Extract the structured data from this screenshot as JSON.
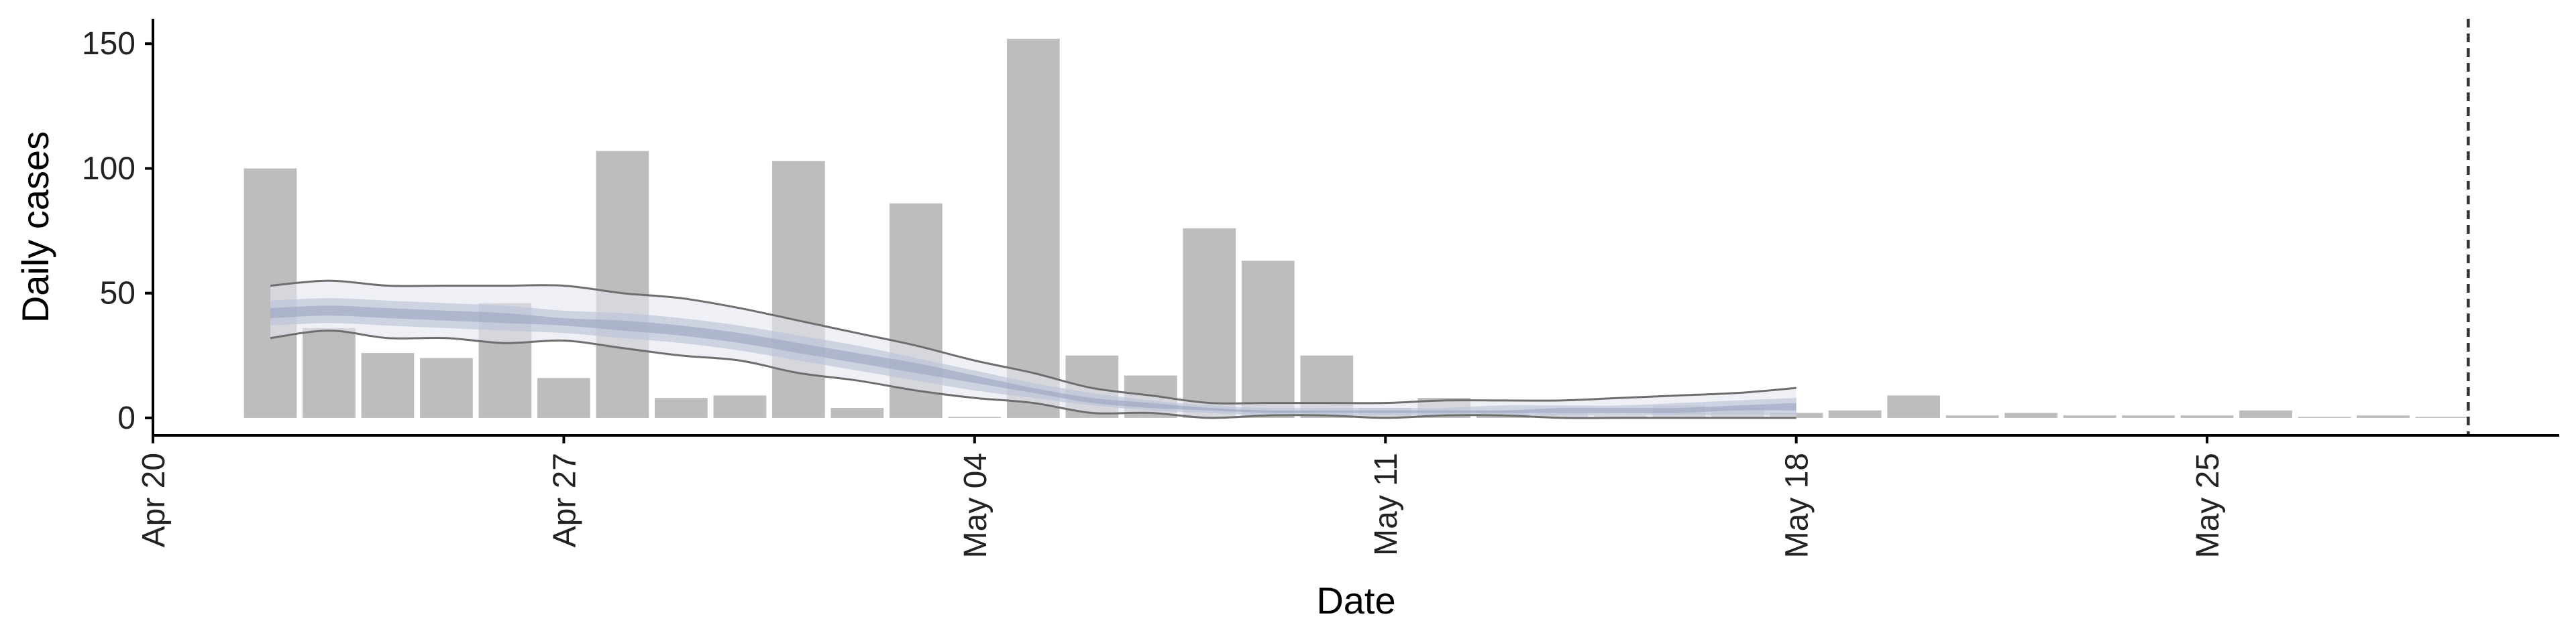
{
  "chart_data": {
    "type": "bar",
    "title": "",
    "xlabel": "Date",
    "ylabel": "Daily cases",
    "ylim": [
      -7,
      160
    ],
    "xlim": [
      "2020-04-20",
      "2020-05-31"
    ],
    "yticks": [
      0,
      50,
      100,
      150
    ],
    "xticks": [
      "Apr 20",
      "Apr 27",
      "May 04",
      "May 11",
      "May 18",
      "May 25"
    ],
    "grid": false,
    "legend": "none",
    "colors": {
      "bars": "#bdbdbd",
      "band_outer": "#e3e6ef",
      "band_inner": "#b9c1d6",
      "band_core": "#96a1bd",
      "bound_lines": "#6e6e6e",
      "cutoff_line": "#333333",
      "axis": "#000000"
    },
    "cases": {
      "dates": [
        "2020-04-22",
        "2020-04-23",
        "2020-04-24",
        "2020-04-25",
        "2020-04-26",
        "2020-04-27",
        "2020-04-28",
        "2020-04-29",
        "2020-04-30",
        "2020-05-01",
        "2020-05-02",
        "2020-05-03",
        "2020-05-04",
        "2020-05-05",
        "2020-05-06",
        "2020-05-07",
        "2020-05-08",
        "2020-05-09",
        "2020-05-10",
        "2020-05-11",
        "2020-05-12",
        "2020-05-13",
        "2020-05-14",
        "2020-05-15",
        "2020-05-16",
        "2020-05-17",
        "2020-05-18",
        "2020-05-19",
        "2020-05-20",
        "2020-05-21",
        "2020-05-22",
        "2020-05-23",
        "2020-05-24",
        "2020-05-25",
        "2020-05-26",
        "2020-05-27",
        "2020-05-28",
        "2020-05-29"
      ],
      "values": [
        100,
        36,
        26,
        24,
        46,
        16,
        107,
        8,
        9,
        103,
        4,
        86,
        0,
        152,
        25,
        17,
        76,
        63,
        25,
        4,
        8,
        3,
        2,
        1,
        5,
        4,
        2,
        3,
        9,
        1,
        2,
        1,
        1,
        1,
        3,
        0,
        1,
        0
      ]
    },
    "estimate": {
      "dates": [
        "2020-04-22",
        "2020-04-23",
        "2020-04-24",
        "2020-04-25",
        "2020-04-26",
        "2020-04-27",
        "2020-04-28",
        "2020-04-29",
        "2020-04-30",
        "2020-05-01",
        "2020-05-02",
        "2020-05-03",
        "2020-05-04",
        "2020-05-05",
        "2020-05-06",
        "2020-05-07",
        "2020-05-08",
        "2020-05-09",
        "2020-05-10",
        "2020-05-11",
        "2020-05-12",
        "2020-05-13",
        "2020-05-14",
        "2020-05-15",
        "2020-05-16",
        "2020-05-17",
        "2020-05-18"
      ],
      "upper_90": [
        53,
        55,
        53,
        53,
        53,
        53,
        50,
        48,
        44,
        39,
        34,
        29,
        23,
        18,
        12,
        9,
        6,
        6,
        6,
        6,
        7,
        7,
        7,
        8,
        9,
        10,
        12
      ],
      "upper_50": [
        47,
        48,
        47,
        46,
        45,
        43,
        42,
        40,
        37,
        33,
        29,
        24,
        19,
        14,
        10,
        7,
        5,
        4,
        4,
        4,
        4,
        5,
        5,
        5,
        6,
        7,
        8
      ],
      "upper_20": [
        44,
        45,
        44,
        43,
        42,
        40,
        39,
        37,
        34,
        30,
        26,
        22,
        17,
        12,
        8,
        6,
        4,
        3,
        3,
        3,
        3,
        3,
        4,
        4,
        4,
        5,
        6
      ],
      "lower_20": [
        40,
        41,
        40,
        39,
        38,
        37,
        35,
        33,
        30,
        26,
        22,
        18,
        14,
        10,
        6,
        4,
        3,
        2,
        2,
        2,
        2,
        2,
        2,
        2,
        2,
        3,
        3
      ],
      "lower_50": [
        37,
        38,
        37,
        36,
        35,
        34,
        32,
        30,
        27,
        23,
        19,
        15,
        11,
        8,
        5,
        3,
        2,
        1,
        1,
        1,
        1,
        1,
        1,
        1,
        1,
        1,
        1
      ],
      "lower_90": [
        32,
        35,
        32,
        32,
        30,
        31,
        28,
        25,
        23,
        18,
        15,
        11,
        8,
        6,
        2,
        2,
        0,
        1,
        1,
        0,
        1,
        1,
        0,
        0,
        0,
        0,
        0
      ]
    },
    "cutoff_date": "2020-05-29"
  }
}
